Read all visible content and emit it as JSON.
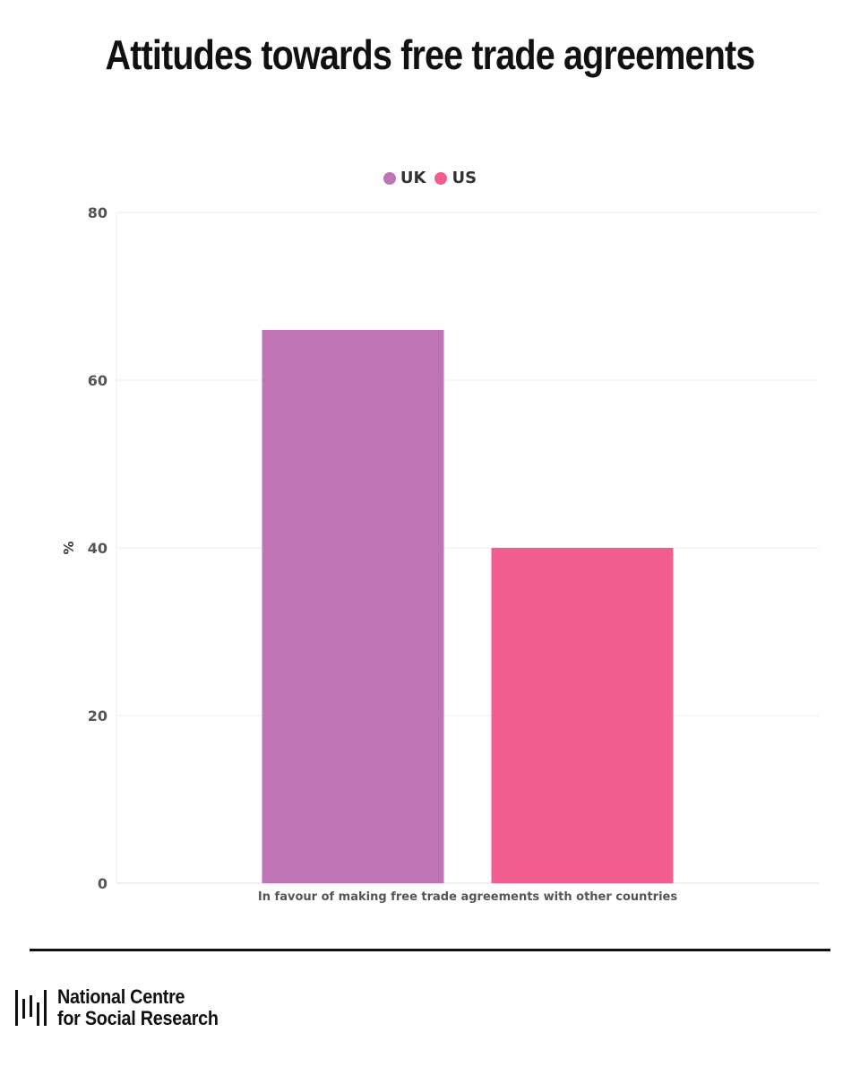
{
  "chart_data": {
    "type": "bar",
    "title": "Attitudes towards free trade agreements",
    "categories": [
      "In favour of making free trade agreements with other countries"
    ],
    "series": [
      {
        "name": "UK",
        "values": [
          66
        ],
        "color": "#bf74b5"
      },
      {
        "name": "US",
        "values": [
          40
        ],
        "color": "#f25d8f"
      }
    ],
    "xlabel": "",
    "ylabel": "%",
    "ylim": [
      0,
      80
    ],
    "yticks": [
      0,
      20,
      40,
      60,
      80
    ],
    "grid": true,
    "legend_position": "top-center"
  },
  "logo": {
    "line1": "National Centre",
    "line2": "for Social Research"
  }
}
